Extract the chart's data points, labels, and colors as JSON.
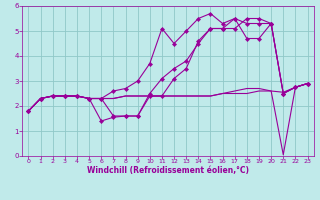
{
  "xlabel": "Windchill (Refroidissement éolien,°C)",
  "bg_color": "#c0eaea",
  "grid_color": "#90c8c8",
  "line_color": "#990099",
  "xlim": [
    -0.5,
    23.5
  ],
  "ylim": [
    0,
    6
  ],
  "xticks": [
    0,
    1,
    2,
    3,
    4,
    5,
    6,
    7,
    8,
    9,
    10,
    11,
    12,
    13,
    14,
    15,
    16,
    17,
    18,
    19,
    20,
    21,
    22,
    23
  ],
  "yticks": [
    0,
    1,
    2,
    3,
    4,
    5,
    6
  ],
  "series1_x": [
    0,
    1,
    2,
    3,
    4,
    5,
    6,
    7,
    8,
    9,
    10,
    11,
    12,
    13,
    14,
    15,
    16,
    17,
    18,
    19,
    20,
    21,
    22,
    23
  ],
  "series1_y": [
    1.8,
    2.3,
    2.4,
    2.4,
    2.4,
    2.3,
    2.3,
    1.6,
    1.6,
    1.6,
    2.4,
    2.4,
    3.1,
    3.5,
    4.6,
    5.1,
    5.1,
    5.5,
    4.7,
    4.7,
    5.3,
    2.5,
    2.75,
    2.9
  ],
  "series2_x": [
    0,
    1,
    2,
    3,
    4,
    5,
    6,
    7,
    8,
    9,
    10,
    11,
    12,
    13,
    14,
    15,
    16,
    17,
    18,
    19,
    20,
    21,
    22,
    23
  ],
  "series2_y": [
    1.8,
    2.3,
    2.4,
    2.4,
    2.4,
    2.3,
    2.3,
    2.6,
    2.7,
    3.0,
    3.7,
    5.1,
    4.5,
    5.0,
    5.5,
    5.7,
    5.3,
    5.5,
    5.3,
    5.3,
    5.3,
    2.5,
    2.75,
    2.9
  ],
  "series3_x": [
    0,
    1,
    2,
    3,
    4,
    5,
    6,
    7,
    8,
    9,
    10,
    11,
    12,
    13,
    14,
    15,
    16,
    17,
    18,
    19,
    20,
    21,
    22,
    23
  ],
  "series3_y": [
    1.8,
    2.3,
    2.4,
    2.4,
    2.4,
    2.3,
    1.4,
    1.55,
    1.6,
    1.6,
    2.5,
    3.1,
    3.5,
    3.8,
    4.5,
    5.1,
    5.1,
    5.1,
    5.5,
    5.5,
    5.3,
    2.5,
    2.75,
    2.9
  ],
  "series4_x": [
    0,
    1,
    2,
    3,
    4,
    5,
    6,
    7,
    8,
    9,
    10,
    11,
    12,
    13,
    14,
    15,
    16,
    17,
    18,
    19,
    20,
    21,
    22,
    23
  ],
  "series4_y": [
    1.8,
    2.3,
    2.4,
    2.4,
    2.4,
    2.3,
    2.3,
    2.3,
    2.4,
    2.4,
    2.4,
    2.4,
    2.4,
    2.4,
    2.4,
    2.4,
    2.5,
    2.5,
    2.5,
    2.6,
    2.6,
    0.05,
    2.75,
    2.9
  ],
  "series5_x": [
    0,
    1,
    2,
    3,
    4,
    5,
    6,
    7,
    8,
    9,
    10,
    11,
    12,
    13,
    14,
    15,
    16,
    17,
    18,
    19,
    20,
    21,
    22,
    23
  ],
  "series5_y": [
    1.8,
    2.3,
    2.4,
    2.4,
    2.4,
    2.3,
    2.3,
    2.3,
    2.4,
    2.4,
    2.4,
    2.4,
    2.4,
    2.4,
    2.4,
    2.4,
    2.5,
    2.6,
    2.7,
    2.7,
    2.6,
    2.55,
    2.75,
    2.9
  ],
  "xlabel_fontsize": 5.5,
  "tick_fontsize": 4.5,
  "linewidth": 0.8,
  "markersize": 2.2
}
